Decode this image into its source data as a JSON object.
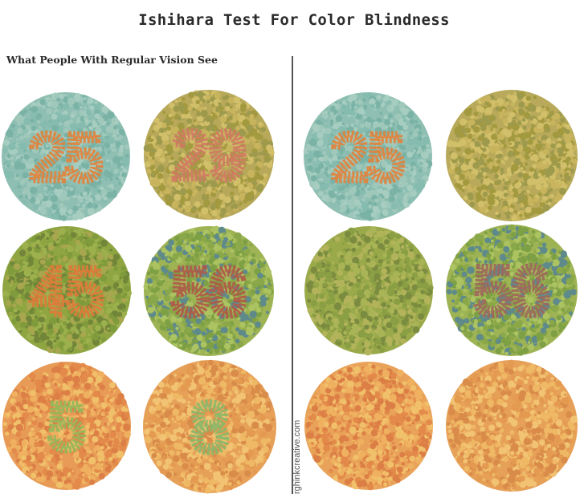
{
  "title": "Ishihara Test For Color Blindness",
  "subtitle": "What People With Regular Vision See",
  "credit": "rghinkcreative.com",
  "panels": {
    "left": {
      "plates": [
        {
          "number": "25",
          "bg": "#8fbfb2",
          "dots": [
            "#86bcb0",
            "#9fc8bb",
            "#7ab3a6",
            "#a6cdc0"
          ],
          "numColor": "#e3833c"
        },
        {
          "number": "29",
          "bg": "#b7a85a",
          "dots": [
            "#9d9a4d",
            "#c9b45e",
            "#a39a40",
            "#d1bf6a"
          ],
          "numColor": "#d27a63"
        },
        {
          "number": "45",
          "bg": "#8ea542",
          "dots": [
            "#7f9b3b",
            "#9cb04d",
            "#a8a64e",
            "#72863a"
          ],
          "numColor": "#e07a3a"
        },
        {
          "number": "56",
          "bg": "#9db354",
          "dots": [
            "#8aa849",
            "#acc362",
            "#7ea044",
            "#5f8a8c"
          ],
          "numColor": "#b05a48"
        },
        {
          "number": "5",
          "bg": "#e79b56",
          "dots": [
            "#e38a4a",
            "#efb060",
            "#dc7f46",
            "#f0c06a"
          ],
          "numColor": "#94b85a"
        },
        {
          "number": "8",
          "bg": "#e6a058",
          "dots": [
            "#e49a50",
            "#efb865",
            "#d98b4a",
            "#f1c373"
          ],
          "numColor": "#8bb86a"
        }
      ]
    },
    "right": {
      "plates": [
        {
          "number": "25",
          "bg": "#8fbfb2",
          "dots": [
            "#86bcb0",
            "#9fc8bb",
            "#7ab3a6",
            "#a6cdc0"
          ],
          "numColor": "#e3833c"
        },
        {
          "number": "",
          "bg": "#b8aa5a",
          "dots": [
            "#9d9a4d",
            "#c9b45e",
            "#a39a40",
            "#d1bf6a"
          ],
          "numColor": "#b8aa5a"
        },
        {
          "number": "",
          "bg": "#9aaa4a",
          "dots": [
            "#8a9e43",
            "#a9b456",
            "#b3b35b",
            "#7b8c40"
          ],
          "numColor": "#9aaa4a"
        },
        {
          "number": "56",
          "bg": "#9db354",
          "dots": [
            "#8aa849",
            "#acc362",
            "#7ea044",
            "#5f8a8c"
          ],
          "numColor": "#a0685c"
        },
        {
          "number": "",
          "bg": "#e9a259",
          "dots": [
            "#e38a4a",
            "#efb060",
            "#dc7f46",
            "#f0c06a"
          ],
          "numColor": "#e9a259"
        },
        {
          "number": "",
          "bg": "#e6a058",
          "dots": [
            "#e49a50",
            "#efb865",
            "#d98b4a",
            "#f1c373"
          ],
          "numColor": "#e6a058"
        }
      ]
    }
  }
}
